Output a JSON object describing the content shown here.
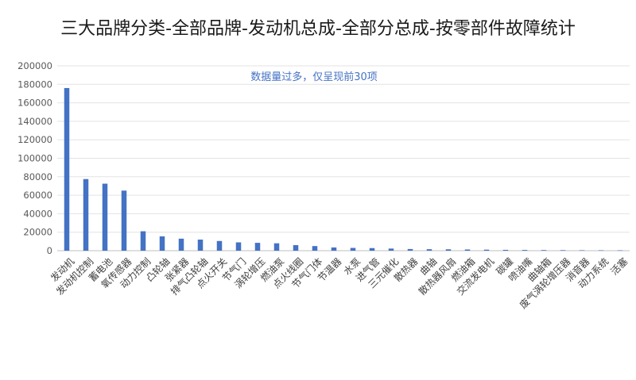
{
  "chart_data": {
    "type": "bar",
    "title": "三大品牌分类-全部品牌-发动机总成-全部分总成-按零部件故障统计",
    "annotation": "数据量过多，仅呈现前30项",
    "ylim": [
      0,
      200000
    ],
    "yticks": [
      0,
      20000,
      40000,
      60000,
      80000,
      100000,
      120000,
      140000,
      160000,
      180000,
      200000
    ],
    "grid": true,
    "bar_color": "#4472c4",
    "annotation_color": "#4472c4",
    "categories": [
      "发动机",
      "发动机控制",
      "蓄电池",
      "氧传感器",
      "动力控制",
      "凸轮轴",
      "张紧器",
      "排气凸轮轴",
      "点火开关",
      "节气门",
      "涡轮增压",
      "燃油泵",
      "点火线圈",
      "节气门体",
      "节温器",
      "水泵",
      "进气管",
      "三元催化",
      "散热器",
      "曲轴",
      "散热器风扇",
      "燃油箱",
      "交流发电机",
      "碳罐",
      "喷油嘴",
      "曲轴箱",
      "废气涡轮增压器",
      "消音器",
      "动力系统",
      "活塞"
    ],
    "values": [
      176000,
      77500,
      72500,
      65000,
      21000,
      15500,
      13000,
      12000,
      10500,
      9000,
      8500,
      8000,
      6000,
      5000,
      3500,
      3000,
      2800,
      2300,
      1800,
      1600,
      1500,
      1300,
      1100,
      900,
      800,
      700,
      600,
      500,
      450,
      400
    ]
  }
}
